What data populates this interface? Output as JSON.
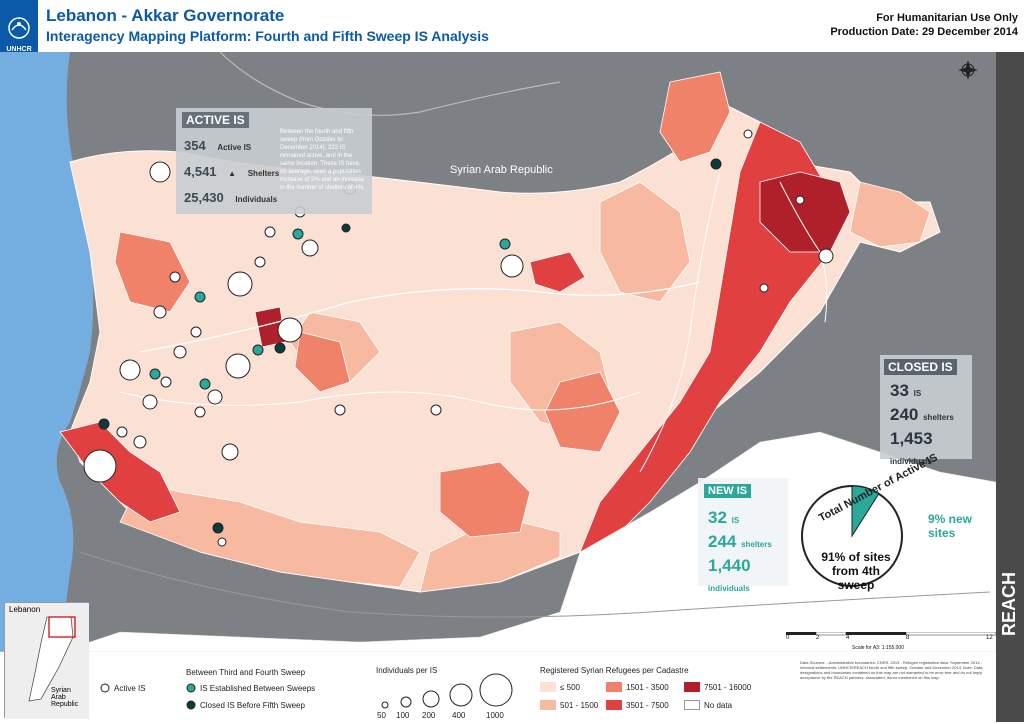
{
  "header": {
    "title": "Lebanon - Akkar Governorate",
    "subtitle": "Interagency Mapping Platform: Fourth and Fifth Sweep IS Analysis",
    "humanitarian": "For Humanitarian Use Only",
    "production_date": "Production Date: 29 December 2014",
    "unhcr_logo": "UNHCR"
  },
  "map_labels": {
    "syria": "Syrian Arab Republic"
  },
  "active_is": {
    "heading": "ACTIVE IS",
    "is_count": "354",
    "is_unit": "Active IS",
    "shelters_count": "4,541",
    "shelters_unit": "Shelters",
    "individuals_count": "25,430",
    "individuals_unit": "Individuals",
    "description": "Between the fourth and fifth sweep (from October to December 2014), 322 IS remained active, and in the same location. These IS have, on average, seen a population increase of 2% and an increase in the number of shelters of 4%."
  },
  "closed_is": {
    "heading": "CLOSED IS",
    "is_count": "33",
    "is_unit": "IS",
    "shelters_count": "240",
    "shelters_unit": "shelters",
    "individuals_count": "1,453",
    "individuals_unit": "individuals"
  },
  "new_is": {
    "heading": "NEW IS",
    "is_count": "32",
    "is_unit": "IS",
    "shelters_count": "244",
    "shelters_unit": "shelters",
    "individuals_count": "1,440",
    "individuals_unit": "individuals"
  },
  "pie": {
    "title": "Total Number of Active IS",
    "new_label": "9% new sites",
    "old_label": "91% of sites from 4th sweep",
    "new_fraction": 0.09,
    "colors": {
      "new": "#2aa89a",
      "old": "#ffffff"
    }
  },
  "inset": {
    "lebanon": "Lebanon",
    "syria": "Syrian Arab Republic"
  },
  "legend": {
    "active_is": "Active IS",
    "sweep_heading": "Between Third and Fourth Sweep",
    "established": "IS Established Between Sweeps",
    "closed": "Closed IS Before Fifth Sweep",
    "individuals_heading": "Individuals per IS",
    "size_labels": [
      "50",
      "100",
      "200",
      "400",
      "1000"
    ],
    "refugees_heading": "Registered Syrian Refugees per Cadastre",
    "classes": [
      {
        "label": "≤ 500",
        "color": "#fbe0d4"
      },
      {
        "label": "501 - 1500",
        "color": "#f7b9a0"
      },
      {
        "label": "1501 - 3500",
        "color": "#f0826a"
      },
      {
        "label": "3501 - 7500",
        "color": "#e04040"
      },
      {
        "label": "7501 - 16000",
        "color": "#b0202a"
      },
      {
        "label": "No data",
        "color": "#ffffff"
      }
    ]
  },
  "scale": {
    "labels": [
      "0",
      "2",
      "4",
      "8",
      "12"
    ],
    "text": "Scale for A3: 1:155,000"
  },
  "notes": {
    "text": "Data Sources: - Administrative boundaries: CNRS, 2013 - Refugee registration data: September 2014 - Informal settlements: UNHCR/REACH fourth and fifth sweep, October and December 2014. Note: Data, designations and boundaries contained on this map are not warranted to be error-free and do not imply acceptance by the REACH partners, associated, donor mentioned on this map."
  },
  "reach": {
    "label": "REACH"
  },
  "colors": {
    "brand_blue": "#0a5aa8",
    "teal": "#2aa89a",
    "dark_teal": "#0b3b3a",
    "sea": "#74aee0",
    "outside": "#7d8084"
  }
}
